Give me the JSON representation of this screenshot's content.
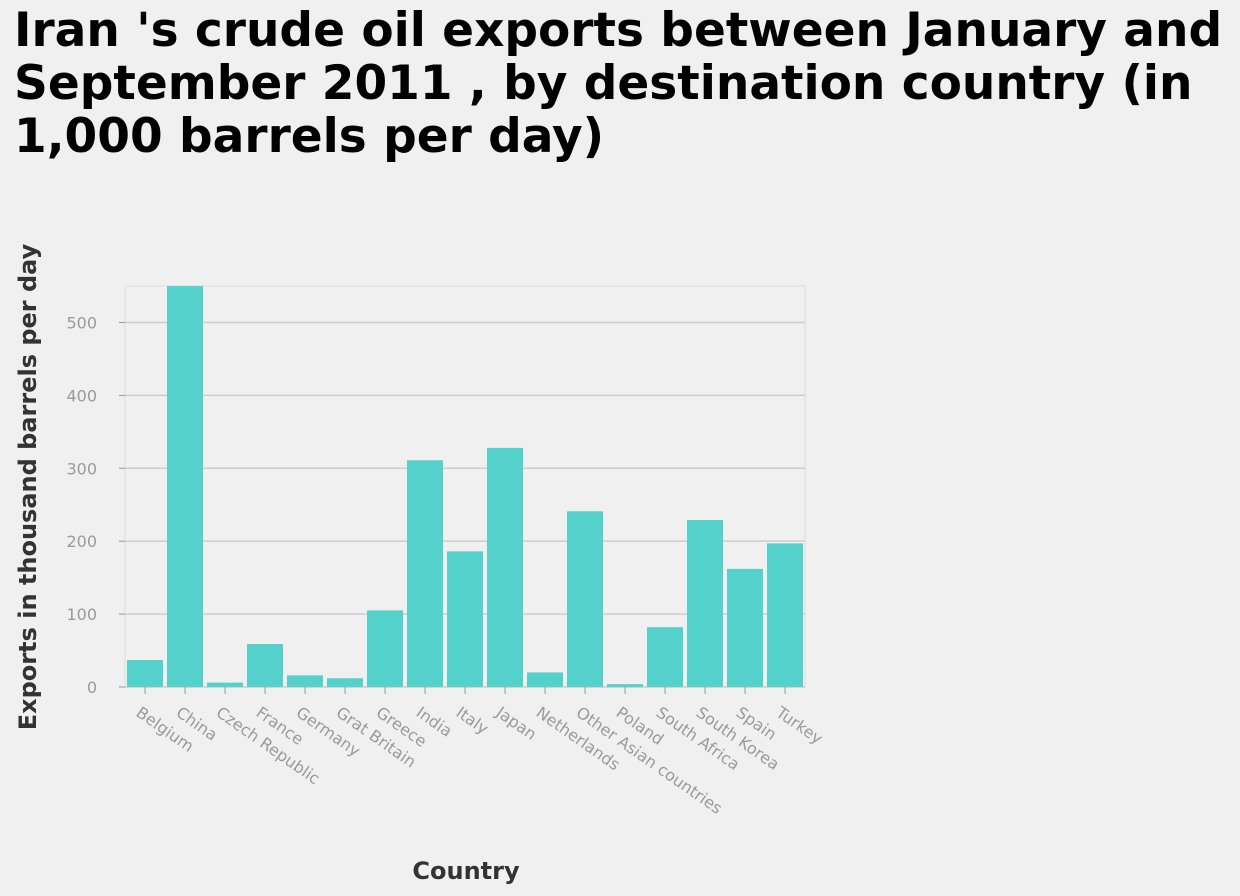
{
  "chart_data": {
    "type": "bar",
    "title": "Iran 's crude oil exports between January and September 2011 , by destination country (in 1,000 barrels per day)",
    "xlabel": "Country",
    "ylabel": "Exports in thousand barrels per day",
    "categories": [
      "Belgium",
      "China",
      "Czech Republic",
      "France",
      "Germany",
      "Grat Britain",
      "Greece",
      "India",
      "Italy",
      "Japan",
      "Netherlands",
      "Other Asian countries",
      "Poland",
      "South Africa",
      "South Korea",
      "Spain",
      "Turkey"
    ],
    "values": [
      37,
      550,
      6,
      59,
      16,
      12,
      105,
      311,
      186,
      328,
      20,
      241,
      4,
      82,
      229,
      162,
      197
    ],
    "yticks": [
      0,
      100,
      200,
      300,
      400,
      500
    ],
    "ylim": [
      0,
      550
    ],
    "grid": true,
    "bar_color": "#53d1ca",
    "grid_color": "#cccccc"
  }
}
